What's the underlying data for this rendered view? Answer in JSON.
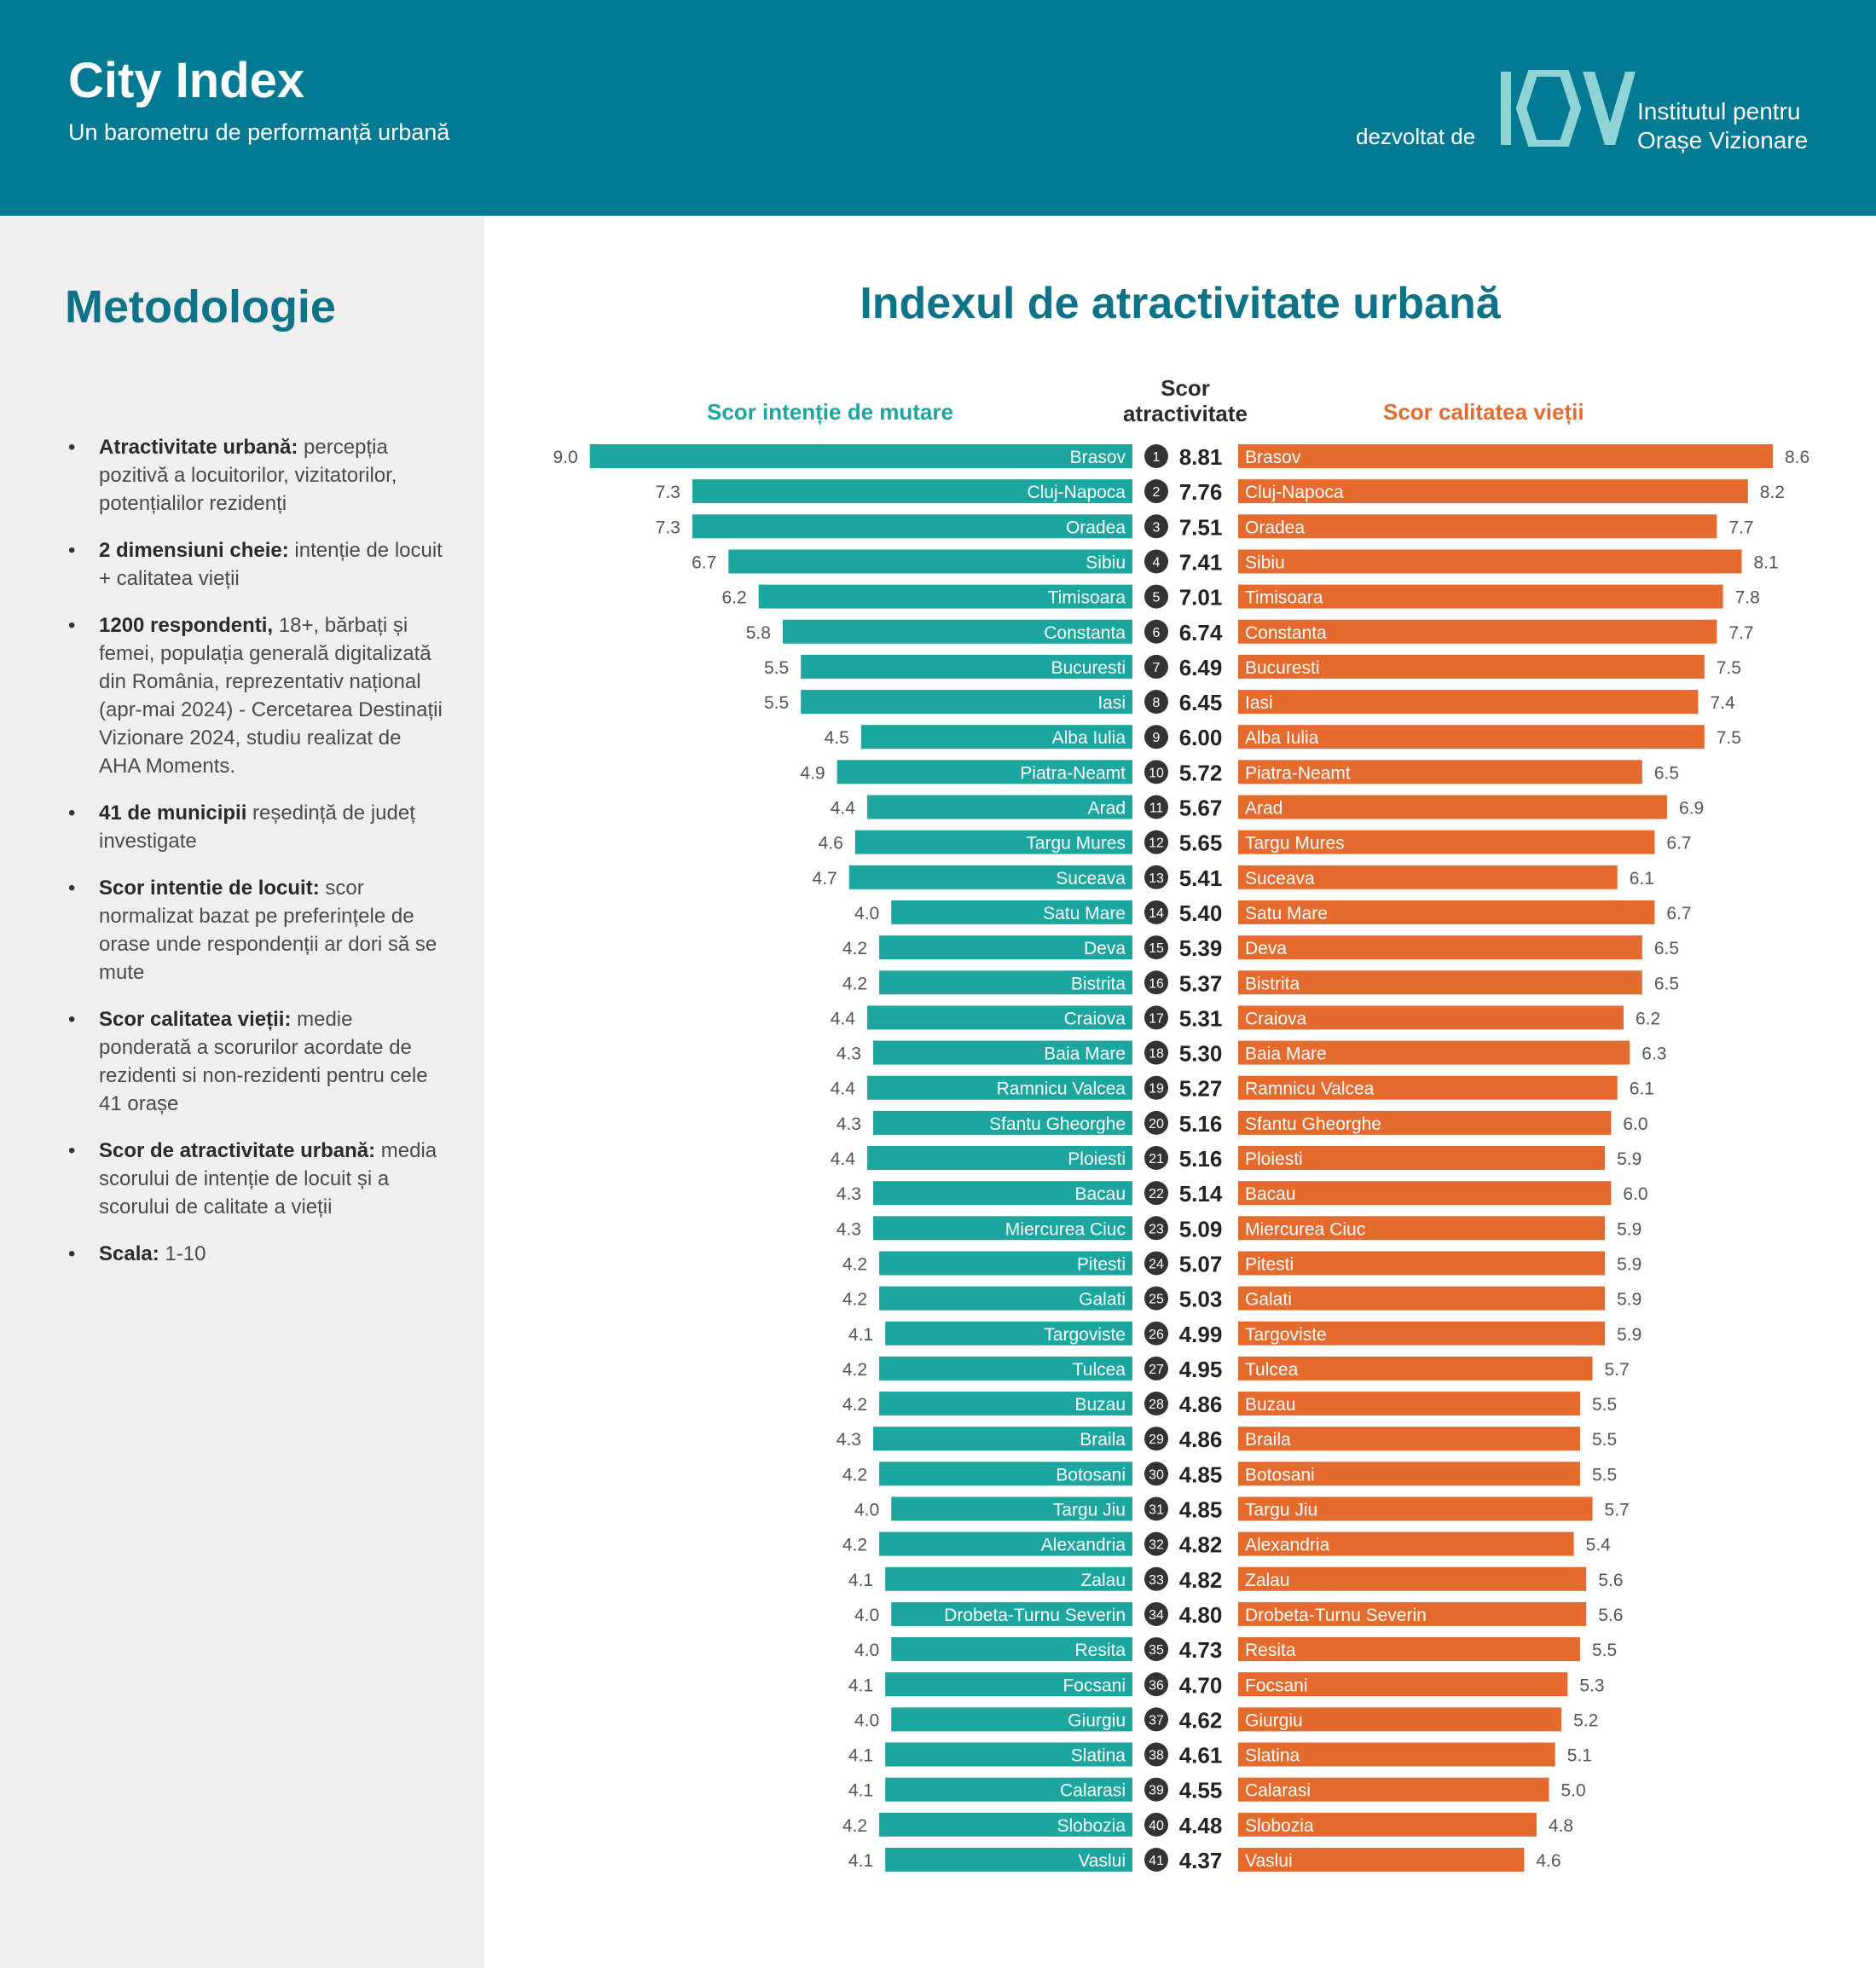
{
  "header": {
    "title": "City Index",
    "subtitle": "Un barometru de performanță urbană",
    "developed_by": "dezvoltat de",
    "logo_line1": "Institutul pentru",
    "logo_line2": "Orașe Vizionare",
    "logo_icon": "iov-logo-icon"
  },
  "sidebar": {
    "title": "Metodologie",
    "items": [
      {
        "bold": "Atractivitate urbană:",
        "text": " percepția pozitivă a locuitorilor, vizitatorilor, potențialilor rezidenți"
      },
      {
        "bold": "2 dimensiuni cheie:",
        "text": " intenție de locuit + calitatea vieții"
      },
      {
        "bold": "1200 respondenti,",
        "text": " 18+, bărbați și femei, populația generală digitalizată din România, reprezentativ național (apr-mai 2024) - Cercetarea Destinații Vizionare 2024, studiu realizat de AHA Moments."
      },
      {
        "bold": "41 de municipii",
        "text": " reședință de județ investigate"
      },
      {
        "bold": "Scor intentie de locuit:",
        "text": " scor normalizat bazat pe preferințele de orase unde respondenții ar dori să se mute"
      },
      {
        "bold": "Scor calitatea vieții:",
        "text": " medie ponderată a scorurilor acordate de rezidenti si non-rezidenti pentru cele 41 orașe"
      },
      {
        "bold": "Scor de atractivitate urbană:",
        "text": " media scorului de intenție de locuit și a scorului de calitate a vieții"
      },
      {
        "bold": "Scala:",
        "text": " 1-10"
      }
    ]
  },
  "colors": {
    "header_bg": "#027a94",
    "title": "#0e7388",
    "teal": "#1ba6a0",
    "orange": "#e56a2e",
    "rank_badge": "#333333",
    "sidebar_bg": "#efefef"
  },
  "chart_data": {
    "type": "bar",
    "title": "Indexul de atractivitate urbană",
    "scale": [
      1,
      10
    ],
    "left_label": "Scor intenție de mutare",
    "center_label_1": "Scor",
    "center_label_2": "atractivitate",
    "right_label": "Scor calitatea vieții",
    "categories": [
      "Brasov",
      "Cluj-Napoca",
      "Oradea",
      "Sibiu",
      "Timisoara",
      "Constanta",
      "Bucuresti",
      "Iasi",
      "Alba Iulia",
      "Piatra-Neamt",
      "Arad",
      "Targu Mures",
      "Suceava",
      "Satu Mare",
      "Deva",
      "Bistrita",
      "Craiova",
      "Baia Mare",
      "Ramnicu Valcea",
      "Sfantu Gheorghe",
      "Ploiesti",
      "Bacau",
      "Miercurea Ciuc",
      "Pitesti",
      "Galati",
      "Targoviste",
      "Tulcea",
      "Buzau",
      "Braila",
      "Botosani",
      "Targu Jiu",
      "Alexandria",
      "Zalau",
      "Drobeta-Turnu Severin",
      "Resita",
      "Focsani",
      "Giurgiu",
      "Slatina",
      "Calarasi",
      "Slobozia",
      "Vaslui"
    ],
    "ranks": [
      "1",
      "2",
      "3",
      "4",
      "5",
      "6",
      "7",
      "8",
      "9",
      "10",
      "11",
      "12",
      "13",
      "14",
      "15",
      "16",
      "17",
      "18",
      "19",
      "20",
      "21",
      "22",
      "23",
      "24",
      "25",
      "26",
      "27",
      "28",
      "29",
      "30",
      "31",
      "32",
      "33",
      "34",
      "35",
      "36",
      "37",
      "38",
      "39",
      "40",
      "41"
    ],
    "series": [
      {
        "name": "Scor intenție de mutare",
        "values": [
          9.0,
          7.3,
          7.3,
          6.7,
          6.2,
          5.8,
          5.5,
          5.5,
          4.5,
          4.9,
          4.4,
          4.6,
          4.7,
          4.0,
          4.2,
          4.2,
          4.4,
          4.3,
          4.4,
          4.3,
          4.4,
          4.3,
          4.3,
          4.2,
          4.2,
          4.1,
          4.2,
          4.2,
          4.3,
          4.2,
          4.0,
          4.2,
          4.1,
          4.0,
          4.0,
          4.1,
          4.0,
          4.1,
          4.1,
          4.2,
          4.1
        ],
        "labels": [
          "9.0",
          "7.3",
          "7.3",
          "6.7",
          "6.2",
          "5.8",
          "5.5",
          "5.5",
          "4.5",
          "4.9",
          "4.4",
          "4.6",
          "4.7",
          "4.0",
          "4.2",
          "4.2",
          "4.4",
          "4.3",
          "4.4",
          "4.3",
          "4.4",
          "4.3",
          "4.3",
          "4.2",
          "4.2",
          "4.1",
          "4.2",
          "4.2",
          "4.3",
          "4.2",
          "4.0",
          "4.2",
          "4.1",
          "4.0",
          "4.0",
          "4.1",
          "4.0",
          "4.1",
          "4.1",
          "4.2",
          "4.1"
        ]
      },
      {
        "name": "Scor atractivitate",
        "values": [
          8.81,
          7.76,
          7.51,
          7.41,
          7.01,
          6.74,
          6.49,
          6.45,
          6.0,
          5.72,
          5.67,
          5.65,
          5.41,
          5.4,
          5.39,
          5.37,
          5.31,
          5.3,
          5.27,
          5.16,
          5.16,
          5.14,
          5.09,
          5.07,
          5.03,
          4.99,
          4.95,
          4.86,
          4.86,
          4.85,
          4.85,
          4.82,
          4.82,
          4.8,
          4.73,
          4.7,
          4.62,
          4.61,
          4.55,
          4.48,
          4.37
        ],
        "labels": [
          "8.81",
          "7.76",
          "7.51",
          "7.41",
          "7.01",
          "6.74",
          "6.49",
          "6.45",
          "6.00",
          "5.72",
          "5.67",
          "5.65",
          "5.41",
          "5.40",
          "5.39",
          "5.37",
          "5.31",
          "5.30",
          "5.27",
          "5.16",
          "5.16",
          "5.14",
          "5.09",
          "5.07",
          "5.03",
          "4.99",
          "4.95",
          "4.86",
          "4.86",
          "4.85",
          "4.85",
          "4.82",
          "4.82",
          "4.80",
          "4.73",
          "4.70",
          "4.62",
          "4.61",
          "4.55",
          "4.48",
          "4.37"
        ]
      },
      {
        "name": "Scor calitatea vieții",
        "values": [
          8.6,
          8.2,
          7.7,
          8.1,
          7.8,
          7.7,
          7.5,
          7.4,
          7.5,
          6.5,
          6.9,
          6.7,
          6.1,
          6.7,
          6.5,
          6.5,
          6.2,
          6.3,
          6.1,
          6.0,
          5.9,
          6.0,
          5.9,
          5.9,
          5.9,
          5.9,
          5.7,
          5.5,
          5.5,
          5.5,
          5.7,
          5.4,
          5.6,
          5.6,
          5.5,
          5.3,
          5.2,
          5.1,
          5.0,
          4.8,
          4.6
        ],
        "labels": [
          "8.6",
          "8.2",
          "7.7",
          "8.1",
          "7.8",
          "7.7",
          "7.5",
          "7.4",
          "7.5",
          "6.5",
          "6.9",
          "6.7",
          "6.1",
          "6.7",
          "6.5",
          "6.5",
          "6.2",
          "6.3",
          "6.1",
          "6.0",
          "5.9",
          "6.0",
          "5.9",
          "5.9",
          "5.9",
          "5.9",
          "5.7",
          "5.5",
          "5.5",
          "5.5",
          "5.7",
          "5.4",
          "5.6",
          "5.6",
          "5.5",
          "5.3",
          "5.2",
          "5.1",
          "5.0",
          "4.8",
          "4.6"
        ]
      }
    ]
  }
}
